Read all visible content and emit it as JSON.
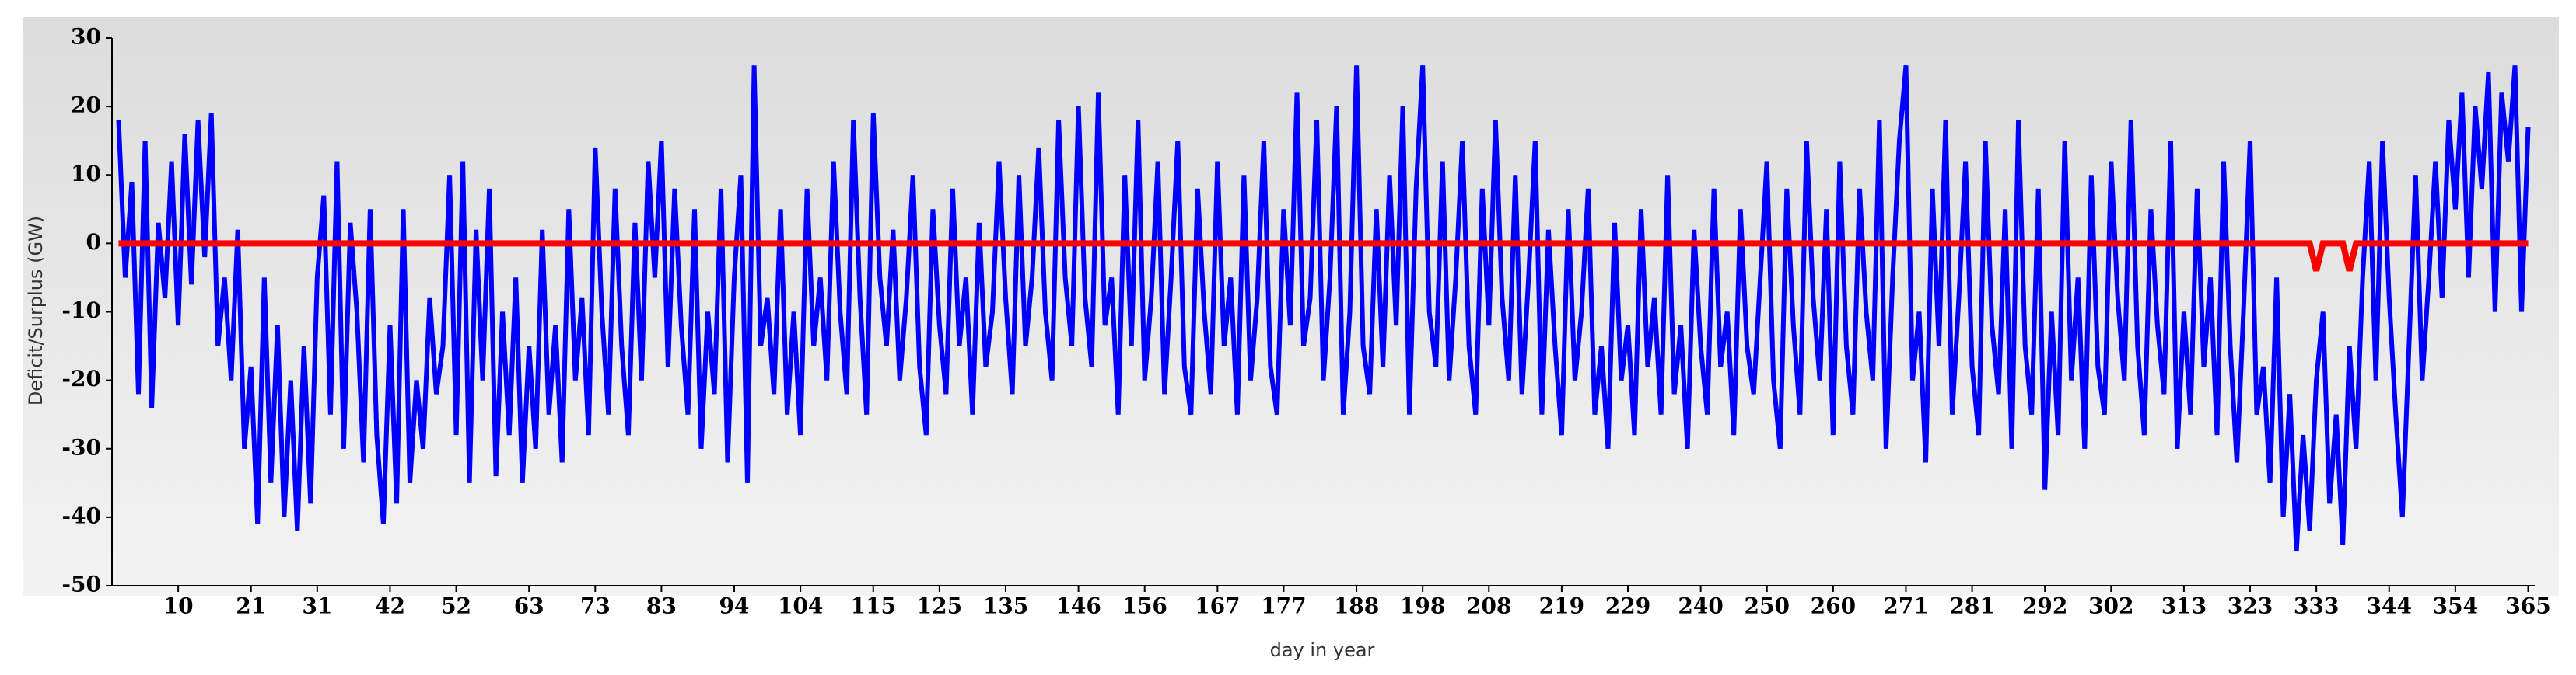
{
  "chart_data": {
    "type": "line",
    "x_label": "day in year",
    "y_label": "Deficit/Surplus (GW)",
    "xlim": [
      0,
      366
    ],
    "ylim": [
      -50,
      30
    ],
    "xticks": [
      10,
      21,
      31,
      42,
      52,
      63,
      73,
      83,
      94,
      104,
      115,
      125,
      135,
      146,
      156,
      167,
      177,
      188,
      198,
      208,
      219,
      229,
      240,
      250,
      260,
      271,
      281,
      292,
      302,
      313,
      323,
      333,
      344,
      354,
      365
    ],
    "yticks": [
      -50,
      -40,
      -30,
      -20,
      -10,
      0,
      10,
      20,
      30
    ],
    "series": [
      {
        "color": "#0000ff",
        "x": [
          1,
          2,
          3,
          4,
          5,
          6,
          7,
          8,
          9,
          10,
          11,
          12,
          13,
          14,
          15,
          16,
          17,
          18,
          19,
          20,
          21,
          22,
          23,
          24,
          25,
          26,
          27,
          28,
          29,
          30,
          31,
          32,
          33,
          34,
          35,
          36,
          37,
          38,
          39,
          40,
          41,
          42,
          43,
          44,
          45,
          46,
          47,
          48,
          49,
          50,
          51,
          52,
          53,
          54,
          55,
          56,
          57,
          58,
          59,
          60,
          61,
          62,
          63,
          64,
          65,
          66,
          67,
          68,
          69,
          70,
          71,
          72,
          73,
          74,
          75,
          76,
          77,
          78,
          79,
          80,
          81,
          82,
          83,
          84,
          85,
          86,
          87,
          88,
          89,
          90,
          91,
          92,
          93,
          94,
          95,
          96,
          97,
          98,
          99,
          100,
          101,
          102,
          103,
          104,
          105,
          106,
          107,
          108,
          109,
          110,
          111,
          112,
          113,
          114,
          115,
          116,
          117,
          118,
          119,
          120,
          121,
          122,
          123,
          124,
          125,
          126,
          127,
          128,
          129,
          130,
          131,
          132,
          133,
          134,
          135,
          136,
          137,
          138,
          139,
          140,
          141,
          142,
          143,
          144,
          145,
          146,
          147,
          148,
          149,
          150,
          151,
          152,
          153,
          154,
          155,
          156,
          157,
          158,
          159,
          160,
          161,
          162,
          163,
          164,
          165,
          166,
          167,
          168,
          169,
          170,
          171,
          172,
          173,
          174,
          175,
          176,
          177,
          178,
          179,
          180,
          181,
          182,
          183,
          184,
          185,
          186,
          187,
          188,
          189,
          190,
          191,
          192,
          193,
          194,
          195,
          196,
          197,
          198,
          199,
          200,
          201,
          202,
          203,
          204,
          205,
          206,
          207,
          208,
          209,
          210,
          211,
          212,
          213,
          214,
          215,
          216,
          217,
          218,
          219,
          220,
          221,
          222,
          223,
          224,
          225,
          226,
          227,
          228,
          229,
          230,
          231,
          232,
          233,
          234,
          235,
          236,
          237,
          238,
          239,
          240,
          241,
          242,
          243,
          244,
          245,
          246,
          247,
          248,
          249,
          250,
          251,
          252,
          253,
          254,
          255,
          256,
          257,
          258,
          259,
          260,
          261,
          262,
          263,
          264,
          265,
          266,
          267,
          268,
          269,
          270,
          271,
          272,
          273,
          274,
          275,
          276,
          277,
          278,
          279,
          280,
          281,
          282,
          283,
          284,
          285,
          286,
          287,
          288,
          289,
          290,
          291,
          292,
          293,
          294,
          295,
          296,
          297,
          298,
          299,
          300,
          301,
          302,
          303,
          304,
          305,
          306,
          307,
          308,
          309,
          310,
          311,
          312,
          313,
          314,
          315,
          316,
          317,
          318,
          319,
          320,
          321,
          322,
          323,
          324,
          325,
          326,
          327,
          328,
          329,
          330,
          331,
          332,
          333,
          334,
          335,
          336,
          337,
          338,
          339,
          340,
          341,
          342,
          343,
          344,
          345,
          346,
          347,
          348,
          349,
          350,
          351,
          352,
          353,
          354,
          355,
          356,
          357,
          358,
          359,
          360,
          361,
          362,
          363,
          364,
          365
        ],
        "values": [
          18,
          -5,
          9,
          -22,
          15,
          -24,
          3,
          -8,
          12,
          -12,
          16,
          -6,
          18,
          -2,
          19,
          -15,
          -5,
          -20,
          2,
          -30,
          -18,
          -41,
          -5,
          -35,
          -12,
          -40,
          -20,
          -42,
          -15,
          -38,
          -5,
          7,
          -25,
          12,
          -30,
          3,
          -10,
          -32,
          5,
          -28,
          -41,
          -12,
          -38,
          5,
          -35,
          -20,
          -30,
          -8,
          -22,
          -15,
          10,
          -28,
          12,
          -35,
          2,
          -20,
          8,
          -34,
          -10,
          -28,
          -5,
          -35,
          -15,
          -30,
          2,
          -25,
          -12,
          -32,
          5,
          -20,
          -8,
          -28,
          14,
          -10,
          -25,
          8,
          -15,
          -28,
          3,
          -20,
          12,
          -5,
          15,
          -18,
          8,
          -12,
          -25,
          5,
          -30,
          -10,
          -22,
          8,
          -32,
          -5,
          10,
          -35,
          26,
          -15,
          -8,
          -22,
          5,
          -25,
          -10,
          -28,
          8,
          -15,
          -5,
          -20,
          12,
          -10,
          -22,
          18,
          -8,
          -25,
          19,
          -5,
          -15,
          2,
          -20,
          -8,
          10,
          -18,
          -28,
          5,
          -12,
          -22,
          8,
          -15,
          -5,
          -25,
          3,
          -18,
          -10,
          12,
          -8,
          -22,
          10,
          -15,
          -5,
          14,
          -10,
          -20,
          18,
          -5,
          -15,
          20,
          -8,
          -18,
          22,
          -12,
          -5,
          -25,
          10,
          -15,
          18,
          -20,
          -8,
          12,
          -22,
          -5,
          15,
          -18,
          -25,
          8,
          -10,
          -22,
          12,
          -15,
          -5,
          -25,
          10,
          -20,
          -8,
          15,
          -18,
          -25,
          5,
          -12,
          22,
          -15,
          -8,
          18,
          -20,
          -5,
          20,
          -25,
          -10,
          26,
          -15,
          -22,
          5,
          -18,
          10,
          -12,
          20,
          -25,
          8,
          26,
          -10,
          -18,
          12,
          -20,
          -5,
          15,
          -15,
          -25,
          8,
          -12,
          18,
          -8,
          -20,
          10,
          -22,
          -5,
          15,
          -25,
          2,
          -15,
          -28,
          5,
          -20,
          -10,
          8,
          -25,
          -15,
          -30,
          3,
          -20,
          -12,
          -28,
          5,
          -18,
          -8,
          -25,
          10,
          -22,
          -12,
          -30,
          2,
          -15,
          -25,
          8,
          -18,
          -10,
          -28,
          5,
          -15,
          -22,
          -5,
          12,
          -20,
          -30,
          8,
          -12,
          -25,
          15,
          -8,
          -20,
          5,
          -28,
          12,
          -15,
          -25,
          8,
          -10,
          -20,
          18,
          -30,
          -5,
          15,
          26,
          -20,
          -10,
          -32,
          8,
          -15,
          18,
          -25,
          -8,
          12,
          -18,
          -28,
          15,
          -12,
          -22,
          5,
          -30,
          18,
          -15,
          -25,
          8,
          -36,
          -10,
          -28,
          15,
          -20,
          -5,
          -30,
          10,
          -18,
          -25,
          12,
          -8,
          -20,
          18,
          -15,
          -28,
          5,
          -12,
          -22,
          15,
          -30,
          -10,
          -25,
          8,
          -18,
          -5,
          -28,
          12,
          -15,
          -32,
          -10,
          15,
          -25,
          -18,
          -35,
          -5,
          -40,
          -22,
          -45,
          -28,
          -42,
          -20,
          -10,
          -38,
          -25,
          -44,
          -15,
          -30,
          -5,
          12,
          -20,
          15,
          -8,
          -25,
          -40,
          -15,
          10,
          -20,
          -5,
          12,
          -8,
          18,
          5,
          22,
          -5,
          20,
          8,
          25,
          -10,
          22,
          12,
          26,
          -10,
          17
        ]
      },
      {
        "color": "#ff0000",
        "x": [
          1,
          332,
          333,
          334,
          337,
          338,
          339,
          365
        ],
        "values": [
          0,
          0,
          -4,
          0,
          0,
          -4,
          0,
          0
        ]
      }
    ]
  }
}
